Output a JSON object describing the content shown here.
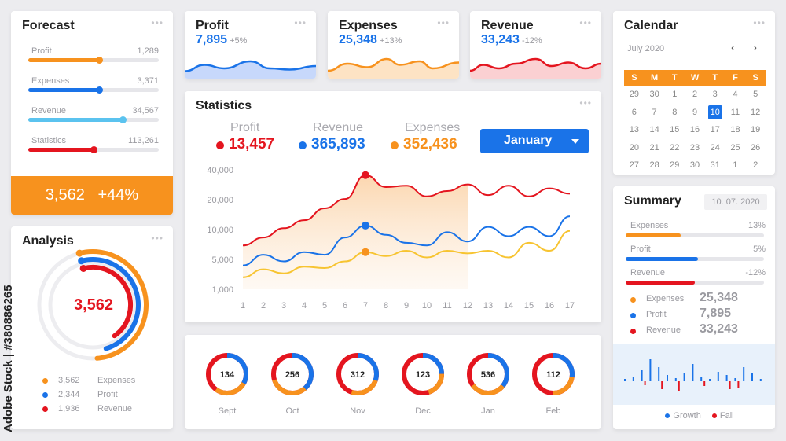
{
  "forecast": {
    "title": "Forecast",
    "items": [
      {
        "label": "Profit",
        "value": "1,289",
        "fraction": 0.54,
        "color": "#f7921e"
      },
      {
        "label": "Expenses",
        "value": "3,371",
        "fraction": 0.54,
        "color": "#1a73e8"
      },
      {
        "label": "Revenue",
        "value": "34,567",
        "fraction": 0.72,
        "color": "#5bc3ef"
      },
      {
        "label": "Statistics",
        "value": "113,261",
        "fraction": 0.5,
        "color": "#e4151f"
      }
    ],
    "total": "3,562",
    "change": "+44%"
  },
  "kpis": [
    {
      "title": "Profit",
      "value": "7,895",
      "change": "+5%",
      "color": "#1a73e8"
    },
    {
      "title": "Expenses",
      "value": "25,348",
      "change": "+13%",
      "color": "#1a73e8"
    },
    {
      "title": "Revenue",
      "value": "33,243",
      "change": "-12%",
      "color": "#1a73e8"
    }
  ],
  "statistics": {
    "title": "Statistics",
    "legend": [
      {
        "label": "Profit",
        "value": "13,457",
        "color": "#e4151f"
      },
      {
        "label": "Revenue",
        "value": "365,893",
        "color": "#1a73e8"
      },
      {
        "label": "Expenses",
        "value": "352,436",
        "color": "#f7921e"
      }
    ],
    "month": "January",
    "chart_data": {
      "type": "line",
      "x": [
        1,
        2,
        3,
        4,
        5,
        6,
        7,
        8,
        9,
        10,
        11,
        12,
        13,
        14,
        15,
        16,
        17
      ],
      "y_ticks": [
        "40,000",
        "20,000",
        "10,000",
        "5,000",
        "1,000"
      ],
      "series": [
        {
          "color": "#e4151f",
          "values": [
            4.3,
            4.9,
            5.6,
            6.2,
            7.1,
            7.8,
            9.6,
            8.7,
            8.8,
            8.0,
            8.4,
            8.9,
            8.1,
            8.8,
            8.0,
            8.6,
            8.2
          ]
        },
        {
          "color": "#1a73e8",
          "values": [
            2.8,
            3.6,
            3.1,
            3.8,
            3.6,
            4.9,
            5.8,
            5.1,
            4.5,
            4.3,
            5.3,
            4.6,
            5.7,
            5.0,
            5.7,
            5.0,
            6.5
          ]
        },
        {
          "color": "#f7c431",
          "values": [
            1.9,
            2.5,
            2.2,
            2.7,
            2.6,
            3.1,
            3.8,
            3.5,
            3.9,
            3.4,
            3.9,
            3.7,
            3.9,
            3.4,
            4.5,
            3.9,
            5.4
          ]
        }
      ]
    }
  },
  "calendar": {
    "title": "Calendar",
    "month": "July 2020",
    "prev": "‹",
    "next": "›",
    "weekdays": [
      "S",
      "M",
      "T",
      "W",
      "T",
      "F",
      "S"
    ],
    "weeks": [
      [
        "29",
        "30",
        "1",
        "2",
        "3",
        "4",
        "5"
      ],
      [
        "6",
        "7",
        "8",
        "9",
        "10",
        "11",
        "12"
      ],
      [
        "13",
        "14",
        "15",
        "16",
        "17",
        "18",
        "19"
      ],
      [
        "20",
        "21",
        "22",
        "23",
        "24",
        "25",
        "26"
      ],
      [
        "27",
        "28",
        "29",
        "30",
        "31",
        "1",
        "2"
      ]
    ],
    "selected": "10"
  },
  "analysis": {
    "title": "Analysis",
    "center": "3,562",
    "rings": [
      {
        "fraction": 0.62,
        "color": "#f7921e"
      },
      {
        "fraction": 0.58,
        "color": "#1a73e8"
      },
      {
        "fraction": 0.52,
        "color": "#e4151f"
      }
    ],
    "legend": [
      {
        "value": "3,562",
        "label": "Expenses",
        "color": "#f7921e"
      },
      {
        "value": "2,344",
        "label": "Profit",
        "color": "#1a73e8"
      },
      {
        "value": "1,936",
        "label": "Revenue",
        "color": "#e4151f"
      }
    ]
  },
  "donuts": [
    {
      "value": "134",
      "month": "Sept",
      "fraction": 0.6
    },
    {
      "value": "256",
      "month": "Oct",
      "fraction": 0.7
    },
    {
      "value": "312",
      "month": "Nov",
      "fraction": 0.55
    },
    {
      "value": "123",
      "month": "Dec",
      "fraction": 0.45
    },
    {
      "value": "536",
      "month": "Jan",
      "fraction": 0.65
    },
    {
      "value": "112",
      "month": "Feb",
      "fraction": 0.5
    }
  ],
  "summary": {
    "title": "Summary",
    "date": "10. 07. 2020",
    "bars": [
      {
        "label": "Expenses",
        "value": "13%",
        "fraction": 0.4,
        "color": "#f7921e"
      },
      {
        "label": "Profit",
        "value": "5%",
        "fraction": 0.52,
        "color": "#1a73e8"
      },
      {
        "label": "Revenue",
        "value": "-12%",
        "fraction": 0.5,
        "color": "#e4151f"
      }
    ],
    "stats": [
      {
        "label": "Expenses",
        "value": "25,348",
        "color": "#f7921e"
      },
      {
        "label": "Profit",
        "value": "7,895",
        "color": "#1a73e8"
      },
      {
        "label": "Revenue",
        "value": "33,243",
        "color": "#e4151f"
      }
    ],
    "legend": [
      {
        "label": "Growth",
        "color": "#1a73e8"
      },
      {
        "label": "Fall",
        "color": "#e4151f"
      }
    ],
    "growth": [
      3,
      6,
      14,
      28,
      18,
      8,
      4,
      10,
      22,
      6,
      3,
      12,
      8,
      4,
      18,
      10,
      3
    ],
    "fall": [
      0,
      0,
      5,
      0,
      10,
      0,
      12,
      0,
      0,
      6,
      0,
      0,
      10,
      8,
      0,
      0,
      0
    ]
  },
  "watermark": {
    "text": "Adobe Stock | #380886265"
  }
}
